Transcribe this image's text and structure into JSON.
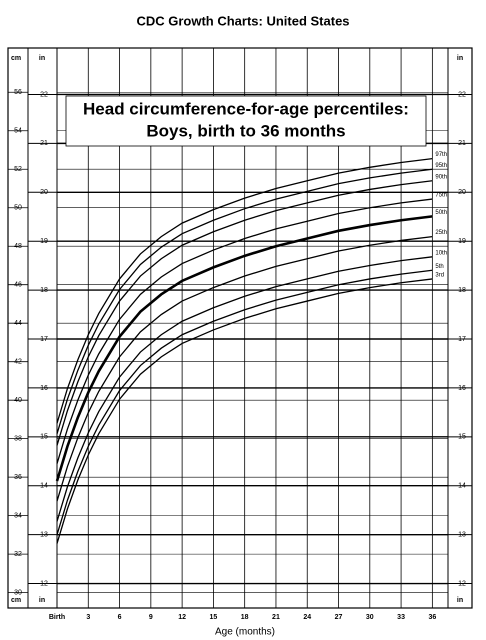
{
  "chart_data": {
    "type": "line",
    "title": "CDC Growth Charts: United States",
    "chart_title": [
      "Head circumference-for-age percentiles:",
      "Boys, birth to 36 months"
    ],
    "x_label": "Age (months)",
    "y_unit": "cm",
    "y2_unit": "in",
    "x": [
      0,
      1,
      2,
      3,
      4,
      6,
      8,
      10,
      12,
      15,
      18,
      21,
      24,
      27,
      30,
      33,
      36
    ],
    "xlim": [
      0,
      37.5
    ],
    "xticks": [
      {
        "value": 0,
        "label": "Birth"
      },
      3,
      6,
      9,
      12,
      15,
      18,
      21,
      24,
      27,
      30,
      33,
      36
    ],
    "ylim": [
      29.2,
      58.3
    ],
    "yticks": [
      30,
      32,
      34,
      36,
      38,
      40,
      42,
      44,
      46,
      48,
      50,
      52,
      54,
      56
    ],
    "y2lim": [
      11.5,
      22.95
    ],
    "y2ticks": [
      12,
      13,
      14,
      15,
      16,
      17,
      18,
      19,
      20,
      21,
      22
    ],
    "grid": true,
    "series": [
      {
        "name": "97th",
        "color": "#000000",
        "width": 1.3,
        "values": [
          38.8,
          40.6,
          42.1,
          43.4,
          44.5,
          46.3,
          47.6,
          48.5,
          49.2,
          49.9,
          50.5,
          51.0,
          51.4,
          51.8,
          52.1,
          52.35,
          52.55
        ]
      },
      {
        "name": "95th",
        "color": "#000000",
        "width": 1.3,
        "values": [
          38.25,
          40.05,
          41.55,
          42.85,
          43.95,
          45.75,
          47.05,
          47.95,
          48.65,
          49.35,
          49.95,
          50.45,
          50.85,
          51.25,
          51.55,
          51.8,
          52.0
        ]
      },
      {
        "name": "90th",
        "color": "#000000",
        "width": 1.3,
        "values": [
          37.65,
          39.45,
          40.95,
          42.25,
          43.35,
          45.15,
          46.45,
          47.35,
          48.05,
          48.75,
          49.35,
          49.85,
          50.25,
          50.65,
          50.95,
          51.2,
          51.4
        ]
      },
      {
        "name": "75th",
        "color": "#000000",
        "width": 1.3,
        "values": [
          36.7,
          38.5,
          40.0,
          41.3,
          42.4,
          44.2,
          45.5,
          46.4,
          47.1,
          47.8,
          48.4,
          48.9,
          49.3,
          49.7,
          50.0,
          50.25,
          50.45
        ]
      },
      {
        "name": "50th",
        "color": "#000000",
        "width": 2.6,
        "values": [
          35.8,
          37.6,
          39.1,
          40.4,
          41.5,
          43.3,
          44.6,
          45.5,
          46.2,
          46.9,
          47.5,
          48.0,
          48.4,
          48.8,
          49.1,
          49.35,
          49.55
        ]
      },
      {
        "name": "25th",
        "color": "#000000",
        "width": 1.3,
        "values": [
          34.75,
          36.55,
          38.05,
          39.35,
          40.45,
          42.25,
          43.55,
          44.45,
          45.15,
          45.85,
          46.45,
          46.95,
          47.35,
          47.75,
          48.05,
          48.3,
          48.5
        ]
      },
      {
        "name": "10th",
        "color": "#000000",
        "width": 1.3,
        "values": [
          33.7,
          35.5,
          37.0,
          38.3,
          39.4,
          41.2,
          42.5,
          43.4,
          44.1,
          44.8,
          45.4,
          45.9,
          46.3,
          46.7,
          47.0,
          47.25,
          47.45
        ]
      },
      {
        "name": "5th",
        "color": "#000000",
        "width": 1.3,
        "values": [
          33.0,
          34.8,
          36.3,
          37.6,
          38.7,
          40.5,
          41.8,
          42.7,
          43.4,
          44.1,
          44.7,
          45.2,
          45.6,
          46.0,
          46.3,
          46.55,
          46.75
        ]
      },
      {
        "name": "3rd",
        "color": "#000000",
        "width": 1.3,
        "values": [
          32.55,
          34.35,
          35.85,
          37.15,
          38.25,
          40.05,
          41.35,
          42.25,
          42.95,
          43.65,
          44.25,
          44.75,
          45.15,
          45.55,
          45.85,
          46.1,
          46.3
        ]
      }
    ]
  }
}
